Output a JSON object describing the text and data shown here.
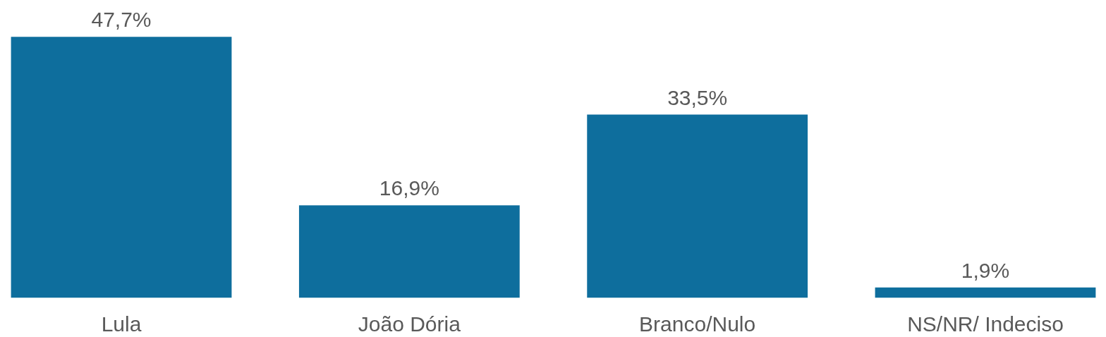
{
  "chart_data": {
    "type": "bar",
    "categories": [
      "Lula",
      "João Dória",
      "Branco/Nulo",
      "NS/NR/ Indeciso"
    ],
    "values": [
      47.7,
      16.9,
      33.5,
      1.9
    ],
    "color": "#0e6e9d",
    "value_labels": [
      "47,7%",
      "16,9%",
      "33,5%",
      "1,9%"
    ]
  }
}
